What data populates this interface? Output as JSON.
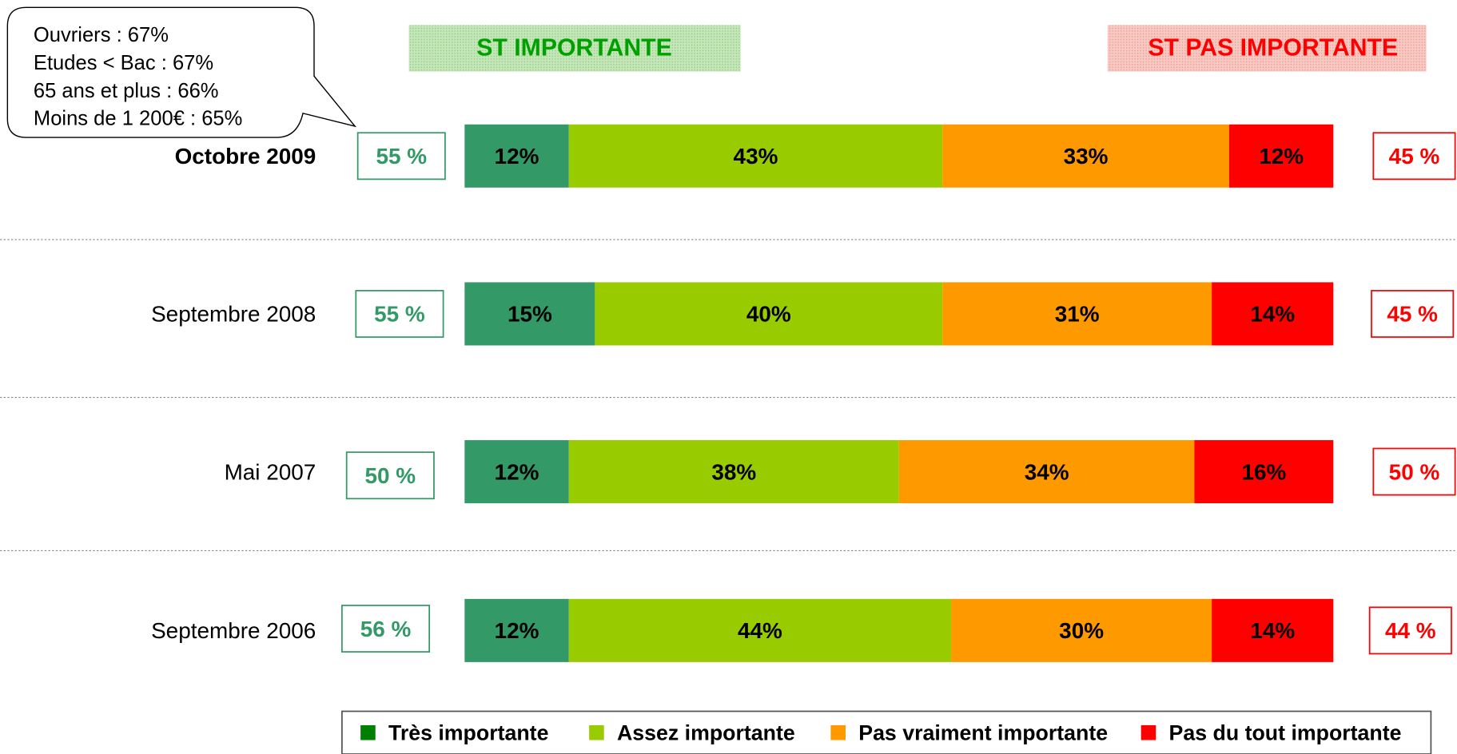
{
  "chart_data": {
    "type": "bar",
    "orientation": "horizontal",
    "stacked": true,
    "categories": [
      "Octobre 2009",
      "Septembre 2008",
      "Mai 2007",
      "Septembre 2006"
    ],
    "series": [
      {
        "name": "Très importante",
        "color": "#339966",
        "values": [
          12,
          15,
          12,
          12
        ],
        "value_labels": [
          "12%",
          "15%",
          "12%",
          "12%"
        ]
      },
      {
        "name": "Assez importante",
        "color": "#99cc00",
        "values": [
          43,
          40,
          38,
          44
        ],
        "value_labels": [
          "43%",
          "40%",
          "38%",
          "44%"
        ]
      },
      {
        "name": "Pas vraiment importante",
        "color": "#ff9900",
        "values": [
          33,
          31,
          34,
          30
        ],
        "value_labels": [
          "33%",
          "31%",
          "34%",
          "30%"
        ]
      },
      {
        "name": "Pas du tout importante",
        "color": "#ff0000",
        "values": [
          12,
          14,
          16,
          14
        ],
        "value_labels": [
          "12%",
          "14%",
          "16%",
          "14%"
        ]
      }
    ],
    "xlim": [
      0,
      100
    ],
    "totals": [
      {
        "label": "ST IMPORTANTE",
        "color": "#339966",
        "header_color": "#00a000",
        "values": [
          55,
          55,
          50,
          56
        ],
        "value_labels": [
          "55 %",
          "55 %",
          "50 %",
          "56 %"
        ]
      },
      {
        "label": "ST PAS IMPORTANTE",
        "color": "#ff0000",
        "header_color": "#ff0000",
        "values": [
          45,
          45,
          50,
          44
        ],
        "value_labels": [
          "45 %",
          "45 %",
          "50 %",
          "44 %"
        ]
      }
    ],
    "annotation": [
      "Ouvriers : 67%",
      "Etudes < Bac : 67%",
      "65 ans et plus : 66%",
      "Moins de 1 200€ : 65%"
    ]
  }
}
